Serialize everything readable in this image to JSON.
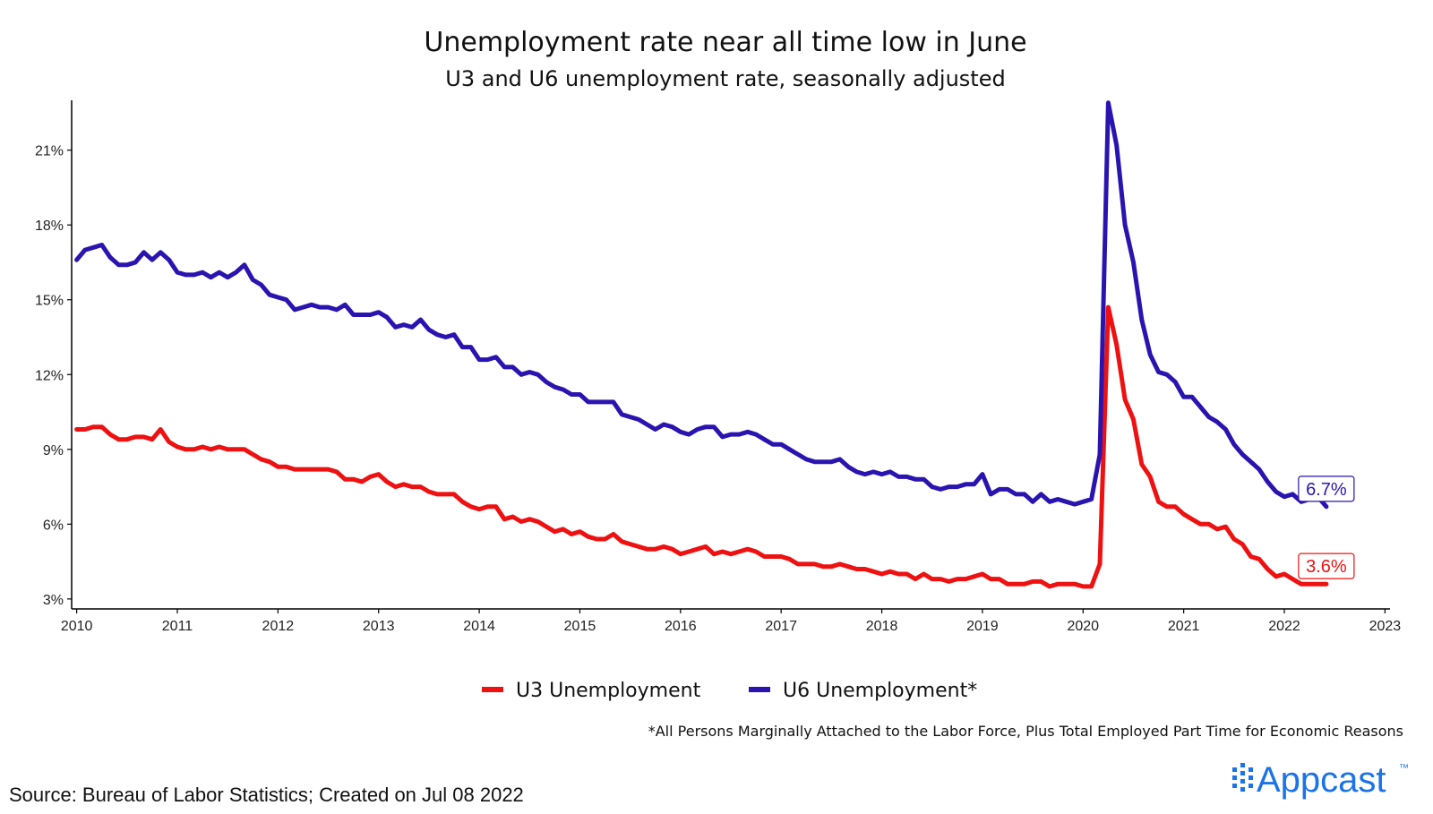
{
  "chart_data": {
    "type": "line",
    "title": "Unemployment rate near all time low in June",
    "subtitle": "U3 and U6 unemployment rate, seasonally adjusted",
    "xlabel": "",
    "ylabel": "",
    "xlim": [
      2009.95,
      2023.05
    ],
    "ylim": [
      2.6,
      23.0
    ],
    "x_ticks": [
      2010,
      2011,
      2012,
      2013,
      2014,
      2015,
      2016,
      2017,
      2018,
      2019,
      2020,
      2021,
      2022,
      2023
    ],
    "x_tick_labels": [
      "2010",
      "2011",
      "2012",
      "2013",
      "2014",
      "2015",
      "2016",
      "2017",
      "2018",
      "2019",
      "2020",
      "2021",
      "2022",
      "2023"
    ],
    "y_ticks": [
      3,
      6,
      9,
      12,
      15,
      18,
      21
    ],
    "y_tick_labels": [
      "3%",
      "6%",
      "9%",
      "12%",
      "15%",
      "18%",
      "21%"
    ],
    "grid": false,
    "legend_position": "bottom-center",
    "x": [
      2010.0,
      2010.083,
      2010.167,
      2010.25,
      2010.333,
      2010.417,
      2010.5,
      2010.583,
      2010.667,
      2010.75,
      2010.833,
      2010.917,
      2011.0,
      2011.083,
      2011.167,
      2011.25,
      2011.333,
      2011.417,
      2011.5,
      2011.583,
      2011.667,
      2011.75,
      2011.833,
      2011.917,
      2012.0,
      2012.083,
      2012.167,
      2012.25,
      2012.333,
      2012.417,
      2012.5,
      2012.583,
      2012.667,
      2012.75,
      2012.833,
      2012.917,
      2013.0,
      2013.083,
      2013.167,
      2013.25,
      2013.333,
      2013.417,
      2013.5,
      2013.583,
      2013.667,
      2013.75,
      2013.833,
      2013.917,
      2014.0,
      2014.083,
      2014.167,
      2014.25,
      2014.333,
      2014.417,
      2014.5,
      2014.583,
      2014.667,
      2014.75,
      2014.833,
      2014.917,
      2015.0,
      2015.083,
      2015.167,
      2015.25,
      2015.333,
      2015.417,
      2015.5,
      2015.583,
      2015.667,
      2015.75,
      2015.833,
      2015.917,
      2016.0,
      2016.083,
      2016.167,
      2016.25,
      2016.333,
      2016.417,
      2016.5,
      2016.583,
      2016.667,
      2016.75,
      2016.833,
      2016.917,
      2017.0,
      2017.083,
      2017.167,
      2017.25,
      2017.333,
      2017.417,
      2017.5,
      2017.583,
      2017.667,
      2017.75,
      2017.833,
      2017.917,
      2018.0,
      2018.083,
      2018.167,
      2018.25,
      2018.333,
      2018.417,
      2018.5,
      2018.583,
      2018.667,
      2018.75,
      2018.833,
      2018.917,
      2019.0,
      2019.083,
      2019.167,
      2019.25,
      2019.333,
      2019.417,
      2019.5,
      2019.583,
      2019.667,
      2019.75,
      2019.833,
      2019.917,
      2020.0,
      2020.083,
      2020.167,
      2020.25,
      2020.333,
      2020.417,
      2020.5,
      2020.583,
      2020.667,
      2020.75,
      2020.833,
      2020.917,
      2021.0,
      2021.083,
      2021.167,
      2021.25,
      2021.333,
      2021.417,
      2021.5,
      2021.583,
      2021.667,
      2021.75,
      2021.833,
      2021.917,
      2022.0,
      2022.083,
      2022.167,
      2022.25,
      2022.333,
      2022.417
    ],
    "series": [
      {
        "name": "U3 Unemployment",
        "color": "#ee1111",
        "end_label": "3.6%",
        "values": [
          9.8,
          9.8,
          9.9,
          9.9,
          9.6,
          9.4,
          9.4,
          9.5,
          9.5,
          9.4,
          9.8,
          9.3,
          9.1,
          9.0,
          9.0,
          9.1,
          9.0,
          9.1,
          9.0,
          9.0,
          9.0,
          8.8,
          8.6,
          8.5,
          8.3,
          8.3,
          8.2,
          8.2,
          8.2,
          8.2,
          8.2,
          8.1,
          7.8,
          7.8,
          7.7,
          7.9,
          8.0,
          7.7,
          7.5,
          7.6,
          7.5,
          7.5,
          7.3,
          7.2,
          7.2,
          7.2,
          6.9,
          6.7,
          6.6,
          6.7,
          6.7,
          6.2,
          6.3,
          6.1,
          6.2,
          6.1,
          5.9,
          5.7,
          5.8,
          5.6,
          5.7,
          5.5,
          5.4,
          5.4,
          5.6,
          5.3,
          5.2,
          5.1,
          5.0,
          5.0,
          5.1,
          5.0,
          4.8,
          4.9,
          5.0,
          5.1,
          4.8,
          4.9,
          4.8,
          4.9,
          5.0,
          4.9,
          4.7,
          4.7,
          4.7,
          4.6,
          4.4,
          4.4,
          4.4,
          4.3,
          4.3,
          4.4,
          4.3,
          4.2,
          4.2,
          4.1,
          4.0,
          4.1,
          4.0,
          4.0,
          3.8,
          4.0,
          3.8,
          3.8,
          3.7,
          3.8,
          3.8,
          3.9,
          4.0,
          3.8,
          3.8,
          3.6,
          3.6,
          3.6,
          3.7,
          3.7,
          3.5,
          3.6,
          3.6,
          3.6,
          3.5,
          3.5,
          4.4,
          14.7,
          13.2,
          11.0,
          10.2,
          8.4,
          7.9,
          6.9,
          6.7,
          6.7,
          6.4,
          6.2,
          6.0,
          6.0,
          5.8,
          5.9,
          5.4,
          5.2,
          4.7,
          4.6,
          4.2,
          3.9,
          4.0,
          3.8,
          3.6,
          3.6,
          3.6,
          3.6
        ]
      },
      {
        "name": "U6 Unemployment*",
        "color": "#2a14b0",
        "end_label": "6.7%",
        "values": [
          16.6,
          17.0,
          17.1,
          17.2,
          16.7,
          16.4,
          16.4,
          16.5,
          16.9,
          16.6,
          16.9,
          16.6,
          16.1,
          16.0,
          16.0,
          16.1,
          15.9,
          16.1,
          15.9,
          16.1,
          16.4,
          15.8,
          15.6,
          15.2,
          15.1,
          15.0,
          14.6,
          14.7,
          14.8,
          14.7,
          14.7,
          14.6,
          14.8,
          14.4,
          14.4,
          14.4,
          14.5,
          14.3,
          13.9,
          14.0,
          13.9,
          14.2,
          13.8,
          13.6,
          13.5,
          13.6,
          13.1,
          13.1,
          12.6,
          12.6,
          12.7,
          12.3,
          12.3,
          12.0,
          12.1,
          12.0,
          11.7,
          11.5,
          11.4,
          11.2,
          11.2,
          10.9,
          10.9,
          10.9,
          10.9,
          10.4,
          10.3,
          10.2,
          10.0,
          9.8,
          10.0,
          9.9,
          9.7,
          9.6,
          9.8,
          9.9,
          9.9,
          9.5,
          9.6,
          9.6,
          9.7,
          9.6,
          9.4,
          9.2,
          9.2,
          9.0,
          8.8,
          8.6,
          8.5,
          8.5,
          8.5,
          8.6,
          8.3,
          8.1,
          8.0,
          8.1,
          8.0,
          8.1,
          7.9,
          7.9,
          7.8,
          7.8,
          7.5,
          7.4,
          7.5,
          7.5,
          7.6,
          7.6,
          8.0,
          7.2,
          7.4,
          7.4,
          7.2,
          7.2,
          6.9,
          7.2,
          6.9,
          7.0,
          6.9,
          6.8,
          6.9,
          7.0,
          8.8,
          22.9,
          21.2,
          18.0,
          16.5,
          14.2,
          12.8,
          12.1,
          12.0,
          11.7,
          11.1,
          11.1,
          10.7,
          10.3,
          10.1,
          9.8,
          9.2,
          8.8,
          8.5,
          8.2,
          7.7,
          7.3,
          7.1,
          7.2,
          6.9,
          7.0,
          7.1,
          6.7
        ]
      }
    ],
    "end_labels": [
      "3.6%",
      "6.7%"
    ],
    "legend": [
      "U3 Unemployment",
      "U6 Unemployment*"
    ],
    "footnote": "*All Persons Marginally Attached to the Labor Force, Plus Total Employed Part Time for Economic Reasons"
  },
  "source": "Source: Bureau of Labor Statistics; Created on Jul 08 2022",
  "brand": {
    "name": "Appcast",
    "tm": "™",
    "color": "#1a73e8"
  }
}
